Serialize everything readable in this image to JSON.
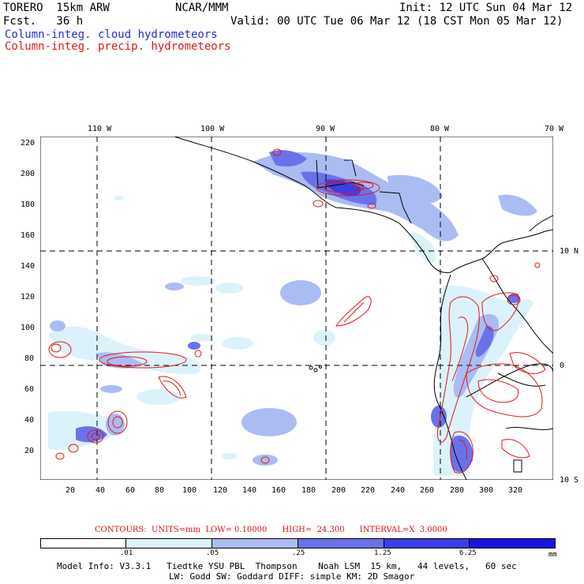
{
  "header": {
    "model": "TORERO  15km ARW",
    "org": "NCAR/MMM",
    "init": "Init: 12 UTC Sun 04 Mar 12",
    "fcst": "Fcst.   36 h",
    "valid": "Valid: 00 UTC Tue 06 Mar 12 (18 CST Mon 05 Mar 12)",
    "legend_cloud": "Column-integ. cloud hydrometeors",
    "legend_precip": "Column-integ. precip. hydrometeors"
  },
  "colors": {
    "cloud": "#1f2fd8",
    "precip": "#e01818"
  },
  "map": {
    "lon_labels": [
      "110 W",
      "100 W",
      "90 W",
      "80 W",
      "70 W"
    ],
    "lat_labels": [
      "10 N",
      "0",
      "10 S"
    ],
    "x_ticks": [
      "20",
      "40",
      "60",
      "80",
      "100",
      "120",
      "140",
      "160",
      "180",
      "200",
      "220",
      "240",
      "260",
      "280",
      "300",
      "320"
    ],
    "y_ticks": [
      "220",
      "200",
      "180",
      "160",
      "140",
      "120",
      "100",
      "80",
      "60",
      "40",
      "20"
    ]
  },
  "contours_info": "CONTOURS:  UNITS=mm  LOW= 0.10000      HIGH=  24.300      INTERVAL=X  3.0000",
  "colorbar": {
    "labels": [
      ".01",
      ".05",
      ".25",
      "1.25",
      "6.25"
    ],
    "unit": "mm",
    "colors": [
      "#ffffff",
      "#dbf2fb",
      "#aabcf2",
      "#6a72ea",
      "#3a3ee8",
      "#1a14e0"
    ]
  },
  "footer": {
    "line1": "Model Info: V3.3.1   Tiedtke YSU PBL  Thompson    Noah LSM  15 km,   44 levels,   60 sec",
    "line2": "LW: Godd SW: Goddard DIFF: simple KM: 2D Smagor"
  }
}
